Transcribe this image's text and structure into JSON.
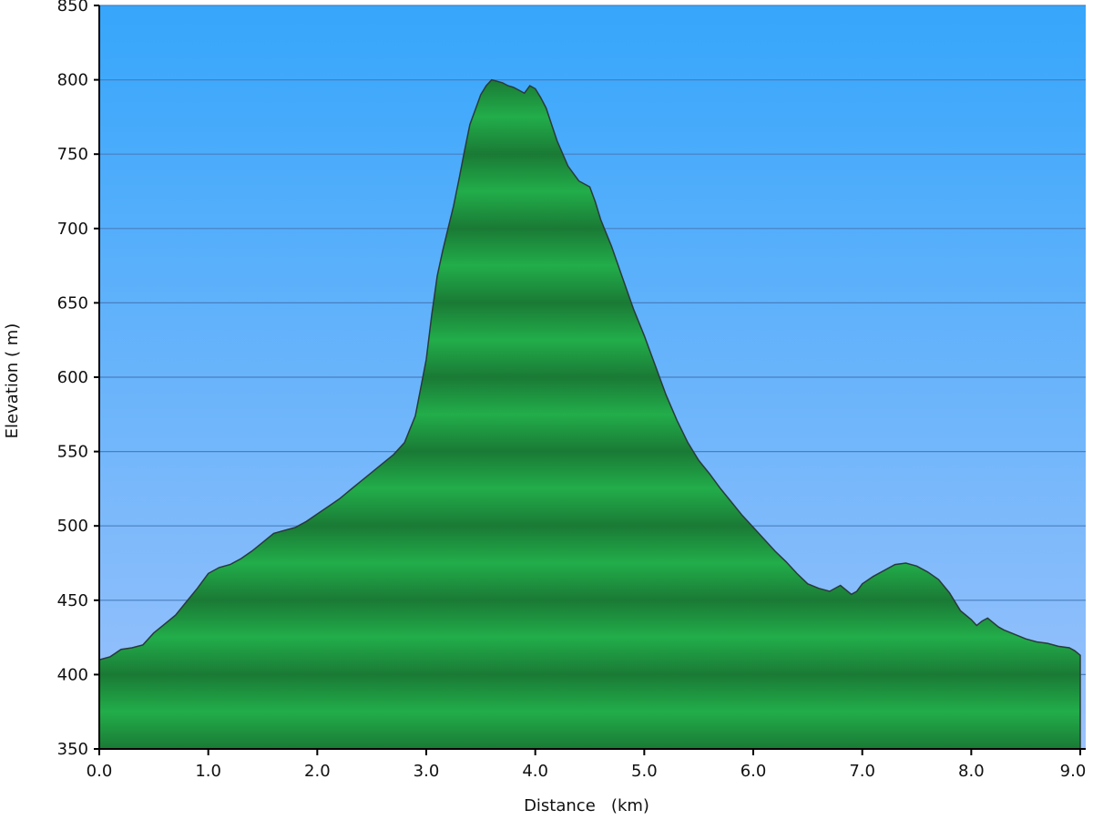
{
  "chart_data": {
    "type": "area",
    "title": "",
    "xlabel": "Distance   (km)",
    "ylabel": "Elevation ( m)",
    "xlim": [
      0,
      9.05
    ],
    "ylim": [
      350,
      850
    ],
    "grid": true,
    "x_ticks": [
      0.0,
      1.0,
      2.0,
      3.0,
      4.0,
      5.0,
      6.0,
      7.0,
      8.0,
      9.0
    ],
    "x_tick_labels": [
      "0.0",
      "1.0",
      "2.0",
      "3.0",
      "4.0",
      "5.0",
      "6.0",
      "7.0",
      "8.0",
      "9.0"
    ],
    "y_ticks": [
      350,
      400,
      450,
      500,
      550,
      600,
      650,
      700,
      750,
      800,
      850
    ],
    "y_tick_labels": [
      "350",
      "400",
      "450",
      "500",
      "550",
      "600",
      "650",
      "700",
      "750",
      "800",
      "850"
    ],
    "colors": {
      "sky_top": "#36a6fb",
      "sky_bottom": "#9cc2fb",
      "fill_light": "#22ad4a",
      "fill_dark": "#1a7a35",
      "outline": "#2a3a3a",
      "grid": "#4a7fbf"
    },
    "series": [
      {
        "x": [
          0.0,
          0.1,
          0.2,
          0.3,
          0.4,
          0.5,
          0.6,
          0.7,
          0.8,
          0.9,
          1.0,
          1.1,
          1.2,
          1.3,
          1.4,
          1.5,
          1.6,
          1.7,
          1.8,
          1.9,
          2.0,
          2.1,
          2.2,
          2.3,
          2.4,
          2.5,
          2.6,
          2.7,
          2.8,
          2.9,
          3.0,
          3.05,
          3.1,
          3.15,
          3.2,
          3.25,
          3.3,
          3.35,
          3.4,
          3.45,
          3.5,
          3.55,
          3.6,
          3.65,
          3.7,
          3.75,
          3.8,
          3.85,
          3.9,
          3.95,
          4.0,
          4.05,
          4.1,
          4.15,
          4.2,
          4.3,
          4.4,
          4.5,
          4.55,
          4.6,
          4.7,
          4.8,
          4.9,
          5.0,
          5.1,
          5.2,
          5.3,
          5.4,
          5.5,
          5.6,
          5.7,
          5.8,
          5.9,
          6.0,
          6.1,
          6.2,
          6.3,
          6.4,
          6.5,
          6.6,
          6.7,
          6.8,
          6.9,
          6.95,
          7.0,
          7.1,
          7.2,
          7.3,
          7.4,
          7.5,
          7.6,
          7.7,
          7.8,
          7.9,
          8.0,
          8.05,
          8.1,
          8.15,
          8.2,
          8.25,
          8.3,
          8.4,
          8.5,
          8.6,
          8.7,
          8.8,
          8.9,
          8.95,
          9.0
        ],
        "values": [
          410,
          412,
          417,
          418,
          420,
          428,
          434,
          440,
          449,
          458,
          468,
          472,
          474,
          478,
          483,
          489,
          495,
          497,
          499,
          503,
          508,
          513,
          518,
          524,
          530,
          536,
          542,
          548,
          556,
          574,
          612,
          642,
          668,
          685,
          700,
          715,
          733,
          752,
          770,
          780,
          790,
          796,
          800,
          799,
          798,
          796,
          795,
          793,
          791,
          796,
          794,
          788,
          781,
          770,
          759,
          742,
          732,
          728,
          718,
          706,
          688,
          667,
          646,
          628,
          608,
          588,
          571,
          556,
          544,
          535,
          525,
          516,
          507,
          499,
          491,
          483,
          476,
          468,
          461,
          458,
          456,
          460,
          454,
          456,
          461,
          466,
          470,
          474,
          475,
          473,
          469,
          464,
          455,
          443,
          437,
          433,
          436,
          438,
          435,
          432,
          430,
          427,
          424,
          422,
          421,
          419,
          418,
          416,
          413
        ]
      }
    ]
  }
}
